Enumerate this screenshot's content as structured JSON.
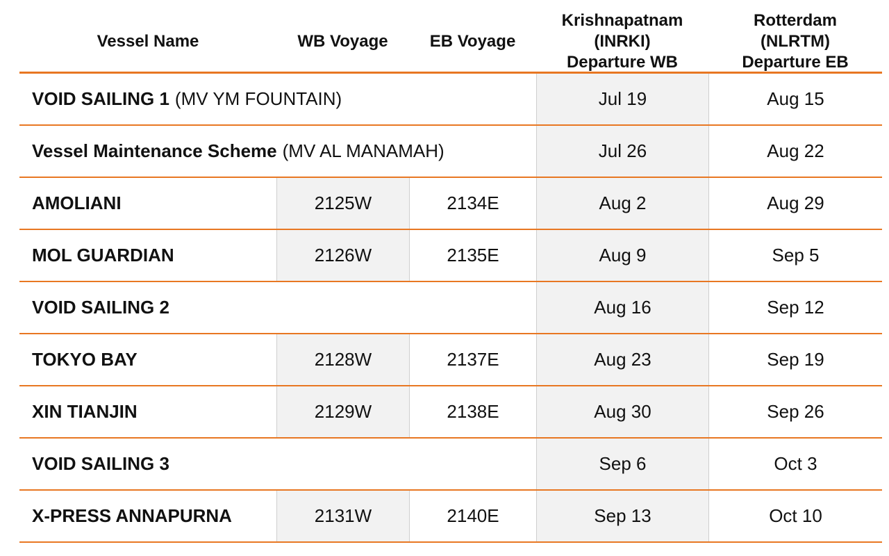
{
  "headers": {
    "vessel_name": "Vessel Name",
    "wb_voyage": "WB Voyage",
    "eb_voyage": "EB Voyage",
    "krishnapatnam": "Krishnapatnam\n(INRKI)\nDeparture WB",
    "rotterdam": "Rotterdam\n(NLRTM)\nDeparture EB"
  },
  "rows": [
    {
      "vessel": "VOID SAILING 1",
      "note": "(MV YM FOUNTAIN)",
      "wb": "",
      "eb": "",
      "krishnapatnam": "Jul 19",
      "rotterdam": "Aug 15"
    },
    {
      "vessel": "Vessel Maintenance Scheme",
      "note": "(MV AL MANAMAH)",
      "wb": "",
      "eb": "",
      "krishnapatnam": "Jul 26",
      "rotterdam": "Aug 22"
    },
    {
      "vessel": "AMOLIANI",
      "note": "",
      "wb": "2125W",
      "eb": "2134E",
      "krishnapatnam": "Aug 2",
      "rotterdam": "Aug 29"
    },
    {
      "vessel": "MOL GUARDIAN",
      "note": "",
      "wb": "2126W",
      "eb": "2135E",
      "krishnapatnam": "Aug 9",
      "rotterdam": "Sep 5"
    },
    {
      "vessel": "VOID SAILING 2",
      "note": "",
      "wb": "",
      "eb": "",
      "krishnapatnam": "Aug 16",
      "rotterdam": "Sep 12"
    },
    {
      "vessel": "TOKYO BAY",
      "note": "",
      "wb": "2128W",
      "eb": "2137E",
      "krishnapatnam": "Aug 23",
      "rotterdam": "Sep 19"
    },
    {
      "vessel": "XIN TIANJIN",
      "note": "",
      "wb": "2129W",
      "eb": "2138E",
      "krishnapatnam": "Aug 30",
      "rotterdam": "Sep 26"
    },
    {
      "vessel": "VOID SAILING 3",
      "note": "",
      "wb": "",
      "eb": "",
      "krishnapatnam": "Sep 6",
      "rotterdam": "Oct 3"
    },
    {
      "vessel": "X-PRESS ANNAPURNA",
      "note": "",
      "wb": "2131W",
      "eb": "2140E",
      "krishnapatnam": "Sep 13",
      "rotterdam": "Oct 10"
    }
  ],
  "colors": {
    "accent_rule": "#E87722",
    "shaded_cell": "#f2f2f2",
    "text": "#111111"
  }
}
